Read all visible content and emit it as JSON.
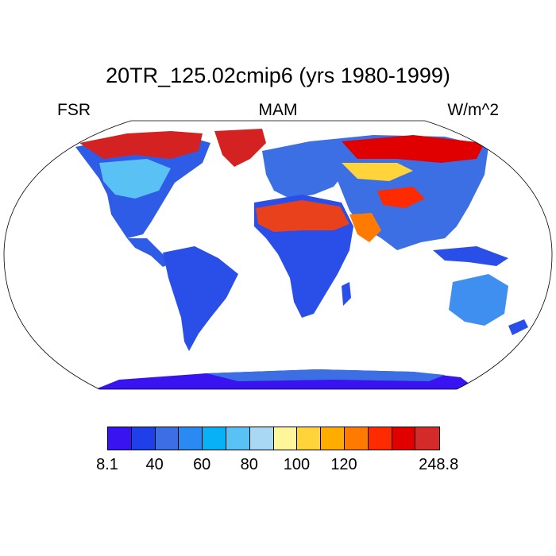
{
  "title": "20TR_125.02cmip6 (yrs 1980-1999)",
  "labels": {
    "left": "FSR",
    "center": "MAM",
    "right": "W/m^2"
  },
  "colorbar": {
    "colors": [
      "#3a14f0",
      "#1f3fe8",
      "#3c6fe4",
      "#2a8af2",
      "#08b0f5",
      "#59c1f4",
      "#a9d8f4",
      "#fff59b",
      "#ffd43a",
      "#ffac00",
      "#ff7a00",
      "#ff2b00",
      "#e00000",
      "#d42a2a"
    ],
    "tick_labels": [
      "8.1",
      "40",
      "60",
      "80",
      "100",
      "120",
      "248.8"
    ],
    "tick_boundaries": [
      0,
      2,
      4,
      6,
      8,
      10,
      14
    ]
  },
  "map_palette": {
    "ocean": "#ffffff",
    "low": "#2a4fe8",
    "mid": "#3f8ff0",
    "desert": "#e8411c",
    "ice": "#d42222"
  }
}
